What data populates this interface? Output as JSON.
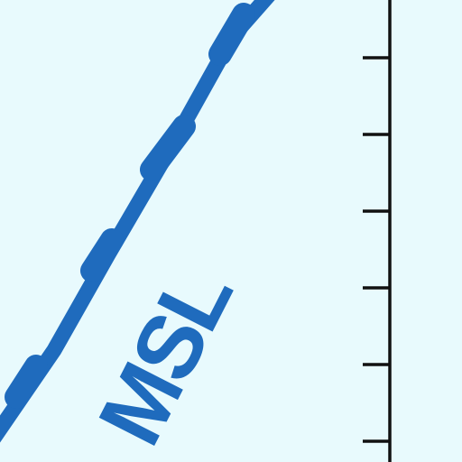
{
  "colors": {
    "background": "#e8fafd",
    "series": "#1f6bbd",
    "axis": "#111111"
  },
  "chart_data": {
    "type": "line",
    "title": "",
    "xlabel": "",
    "ylabel": "",
    "grid": false,
    "legend": "none",
    "y_axis_side": "right",
    "tick_count": 6,
    "series": [
      {
        "name": "MSL",
        "label_text": "MSL",
        "trend": "rising",
        "style": "thick line with periodic bumps"
      }
    ]
  }
}
